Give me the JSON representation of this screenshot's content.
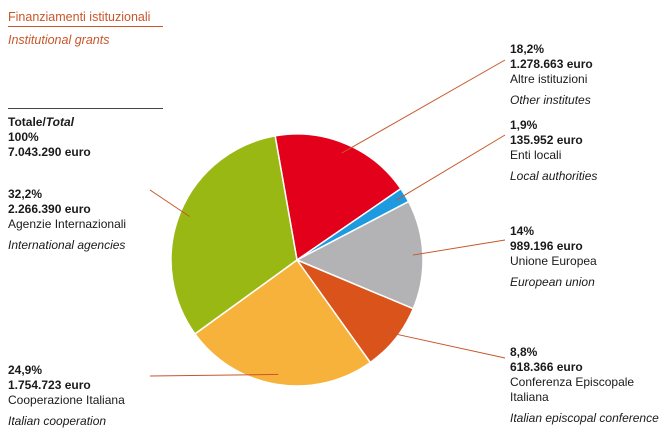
{
  "header": {
    "title_it": "Finanziamenti istituzionali",
    "title_en": "Institutional grants"
  },
  "total": {
    "label_it": "Totale/",
    "label_en": "Total",
    "percent": "100%",
    "amount": "7.043.290 euro"
  },
  "chart_data": {
    "type": "pie",
    "total_percent": 100,
    "total_amount_euro": 7043290,
    "slices": [
      {
        "percent": 18.2,
        "percent_label": "18,2%",
        "amount": "1.278.663 euro",
        "amount_euro": 1278663,
        "label_it": "Altre istituzioni",
        "label_en": "Other institutes",
        "color": "#e2001a"
      },
      {
        "percent": 1.9,
        "percent_label": "1,9%",
        "amount": "135.952 euro",
        "amount_euro": 135952,
        "label_it": "Enti locali",
        "label_en": "Local authorities",
        "color": "#1e9be0"
      },
      {
        "percent": 14,
        "percent_label": "14%",
        "amount": "989.196 euro",
        "amount_euro": 989196,
        "label_it": "Unione Europea",
        "label_en": "European union",
        "color": "#b3b3b6"
      },
      {
        "percent": 8.8,
        "percent_label": "8,8%",
        "amount": "618.366 euro",
        "amount_euro": 618366,
        "label_it": "Conferenza Episcopale Italiana",
        "label_en": "Italian episcopal conference",
        "color": "#d9531a"
      },
      {
        "percent": 24.9,
        "percent_label": "24,9%",
        "amount": "1.754.723 euro",
        "amount_euro": 1754723,
        "label_it": "Cooperazione Italiana",
        "label_en": "Italian cooperation",
        "color": "#f7b23b"
      },
      {
        "percent": 32.2,
        "percent_label": "32,2%",
        "amount": "2.266.390 euro",
        "amount_euro": 2266390,
        "label_it": "Agenzie Internazionali",
        "label_en": "International agencies",
        "color": "#9ab814"
      }
    ],
    "leader_color": "#c8562a"
  }
}
